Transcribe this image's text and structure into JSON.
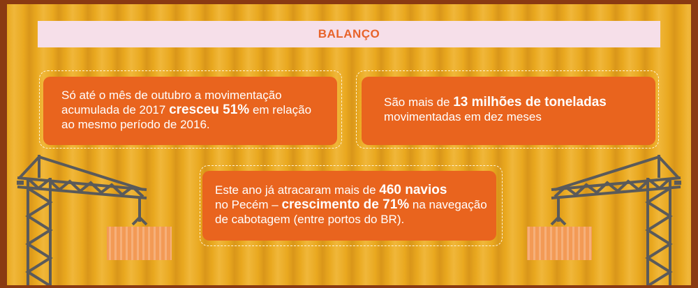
{
  "title": "BALANÇO",
  "card1": {
    "line1": "Só até o mês de outubro a movimentação",
    "line2_pre": "acumulada de 2017 ",
    "line2_bold": "cresceu 51%",
    "line2_post": " em relação",
    "line3": "ao mesmo período de 2016."
  },
  "card2": {
    "line1_pre": "São mais de ",
    "line1_bold": "13 milhões de toneladas",
    "line2": "movimentadas em dez meses"
  },
  "card3": {
    "line1_pre": "Este ano já atracaram mais de ",
    "line1_bold": "460 navios",
    "line2_pre": "no Pecém – ",
    "line2_bold": "crescimento de 71%",
    "line2_post": " na navegação",
    "line3": "de cabotagem (entre portos do BR)."
  },
  "colors": {
    "background": "#e6a21a",
    "card": "#e9641e",
    "frame": "#8a3a12",
    "title_bar": "#f6dfe9",
    "title_text": "#e8632a"
  }
}
